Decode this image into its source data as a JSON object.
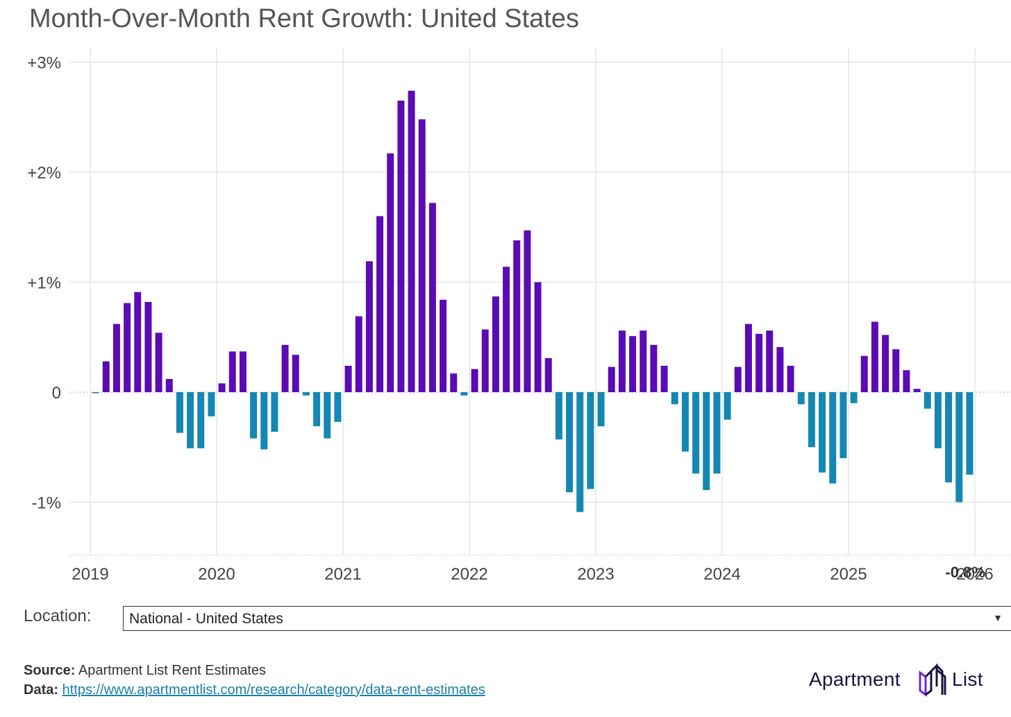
{
  "header": {
    "title": "Month-Over-Month Rent Growth: United States"
  },
  "chart_data": {
    "type": "bar",
    "title": "Month-Over-Month Rent Growth: United States",
    "xlabel": "",
    "ylabel": "",
    "unit": "%",
    "ylim": [
      -1.5,
      3.1
    ],
    "y_ticks": [
      3,
      2,
      1,
      0,
      -1
    ],
    "y_tick_labels": [
      "+3%",
      "+2%",
      "+1%",
      "0",
      "-1%"
    ],
    "x_tick_labels": [
      "2019",
      "2020",
      "2021",
      "2022",
      "2023",
      "2024",
      "2025",
      "2026"
    ],
    "grid": "on",
    "colors": {
      "positive": "#5b0bb5",
      "negative": "#1487b3"
    },
    "start_month": "2019-01",
    "series": [
      {
        "values": [
          -0.01,
          0.28,
          0.62,
          0.81,
          0.91,
          0.82,
          0.54,
          0.12,
          -0.37,
          -0.51,
          -0.51,
          -0.22,
          0.08,
          0.37,
          0.37,
          -0.42,
          -0.52,
          -0.36,
          0.43,
          0.34,
          -0.03,
          -0.31,
          -0.42,
          -0.27,
          0.24,
          0.69,
          1.19,
          1.6,
          2.17,
          2.65,
          2.74,
          2.48,
          1.72,
          0.84,
          0.17,
          -0.03,
          0.21,
          0.57,
          0.87,
          1.14,
          1.38,
          1.47,
          1.0,
          0.31,
          -0.43,
          -0.91,
          -1.09,
          -0.88,
          -0.31,
          0.23,
          0.56,
          0.51,
          0.56,
          0.43,
          0.24,
          -0.11,
          -0.54,
          -0.74,
          -0.89,
          -0.74,
          -0.25,
          0.23,
          0.62,
          0.53,
          0.56,
          0.41,
          0.24,
          -0.11,
          -0.5,
          -0.73,
          -0.83,
          -0.6,
          -0.1,
          0.33,
          0.64,
          0.52,
          0.39,
          0.2,
          0.03,
          -0.15,
          -0.51,
          -0.82,
          -1.0,
          -0.75
        ]
      }
    ],
    "annotations": [
      {
        "text": "-0.8%"
      }
    ]
  },
  "controls": {
    "location_label": "Location:",
    "location_value": "National - United States",
    "caret_icon": "triangle-down-icon"
  },
  "footer": {
    "source_label": "Source:",
    "source_text": "Apartment List Rent Estimates",
    "data_label": "Data:",
    "data_url": "https://www.apartmentlist.com/research/category/data-rent-estimates"
  },
  "logo": {
    "left_text": "Apartment",
    "right_text": "List",
    "icon": "building-logo-icon"
  }
}
